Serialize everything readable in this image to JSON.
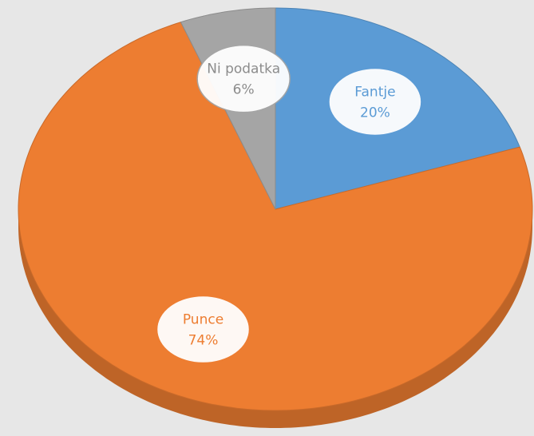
{
  "chart_data": {
    "type": "pie",
    "categories": [
      "Fantje",
      "Punce",
      "Ni podatka"
    ],
    "values": [
      20,
      74,
      6
    ],
    "value_labels": [
      "20%",
      "74%",
      "6%"
    ],
    "colors": [
      "#5b9bd5",
      "#ed7d31",
      "#a5a5a5"
    ]
  }
}
